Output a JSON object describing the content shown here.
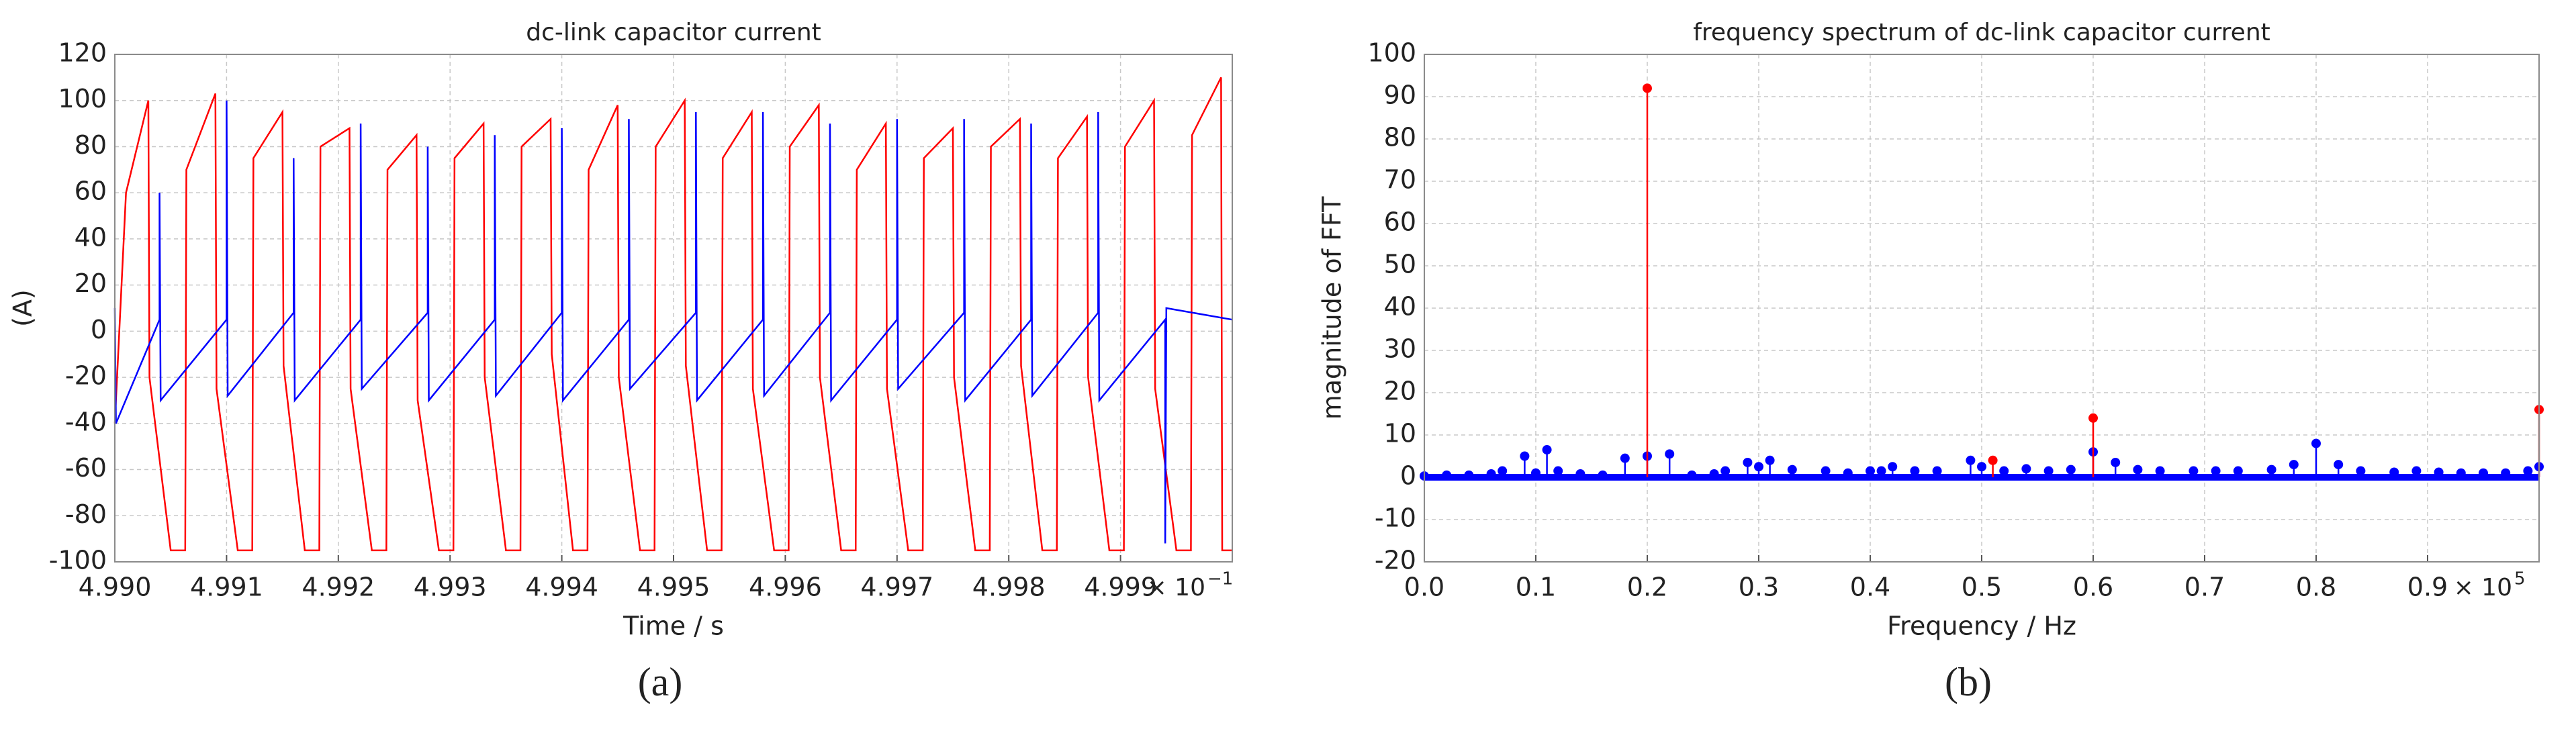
{
  "chart_data": [
    {
      "type": "line",
      "title": "dc-link capacitor current",
      "xlabel": "Time / s",
      "ylabel": "(A)",
      "x_multiplier": "× 10",
      "x_multiplier_exponent": "−1",
      "caption": "(a)",
      "xlim": [
        4.99,
        5.0
      ],
      "xticks": [
        {
          "value": 4.99,
          "label": "4.990"
        },
        {
          "value": 4.991,
          "label": "4.991"
        },
        {
          "value": 4.992,
          "label": "4.992"
        },
        {
          "value": 4.993,
          "label": "4.993"
        },
        {
          "value": 4.994,
          "label": "4.994"
        },
        {
          "value": 4.995,
          "label": "4.995"
        },
        {
          "value": 4.996,
          "label": "4.996"
        },
        {
          "value": 4.997,
          "label": "4.997"
        },
        {
          "value": 4.998,
          "label": "4.998"
        },
        {
          "value": 4.999,
          "label": "4.999"
        }
      ],
      "ylim": [
        -100,
        120
      ],
      "yticks": [
        -100,
        -80,
        -60,
        -40,
        -20,
        0,
        20,
        40,
        60,
        80,
        100,
        120
      ],
      "grid": true,
      "series": [
        {
          "color": "#ff0000",
          "x": [
            4.99,
            4.9901,
            4.9903,
            4.99031,
            4.9905,
            4.99063,
            4.99064,
            4.9909,
            4.99091,
            4.9911,
            4.99123,
            4.99124,
            4.9915,
            4.99151,
            4.9917,
            4.99183,
            4.99184,
            4.9921,
            4.99211,
            4.9923,
            4.99243,
            4.99244,
            4.9927,
            4.99271,
            4.9929,
            4.99303,
            4.99304,
            4.9933,
            4.99331,
            4.9935,
            4.99363,
            4.99364,
            4.9939,
            4.99391,
            4.9941,
            4.99423,
            4.99424,
            4.9945,
            4.99451,
            4.9947,
            4.99483,
            4.99484,
            4.9951,
            4.99511,
            4.9953,
            4.99543,
            4.99544,
            4.9957,
            4.99571,
            4.9959,
            4.99603,
            4.99604,
            4.9963,
            4.99631,
            4.9965,
            4.99663,
            4.99664,
            4.9969,
            4.99691,
            4.9971,
            4.99723,
            4.99724,
            4.9975,
            4.99751,
            4.9977,
            4.99783,
            4.99784,
            4.9981,
            4.99811,
            4.9983,
            4.99843,
            4.99844,
            4.9987,
            4.99871,
            4.9989,
            4.99903,
            4.99904,
            4.9993,
            4.99931,
            4.9995,
            4.99963,
            4.99964,
            4.9999,
            4.99991,
            5.0
          ],
          "values": [
            -40,
            60,
            100,
            -20,
            -95,
            -95,
            70,
            103,
            -25,
            -95,
            -95,
            75,
            95,
            -15,
            -95,
            -95,
            80,
            88,
            -25,
            -95,
            -95,
            70,
            85,
            -30,
            -95,
            -95,
            75,
            90,
            -20,
            -95,
            -95,
            80,
            92,
            -10,
            -95,
            -95,
            70,
            98,
            -20,
            -95,
            -95,
            80,
            100,
            -15,
            -95,
            -95,
            75,
            95,
            -25,
            -95,
            -95,
            80,
            98,
            -20,
            -95,
            -95,
            70,
            90,
            -25,
            -95,
            -95,
            75,
            88,
            -20,
            -95,
            -95,
            80,
            92,
            -15,
            -95,
            -95,
            75,
            93,
            -20,
            -95,
            -95,
            80,
            100,
            -25,
            -95,
            -95,
            85,
            110,
            -95,
            -95
          ]
        },
        {
          "color": "#0000ff",
          "x": [
            4.99,
            4.99001,
            4.9904,
            4.9904,
            4.99041,
            4.991,
            4.991,
            4.99101,
            4.9916,
            4.9916,
            4.99161,
            4.9922,
            4.9922,
            4.99221,
            4.9928,
            4.9928,
            4.99281,
            4.9934,
            4.9934,
            4.99341,
            4.994,
            4.994,
            4.99401,
            4.9946,
            4.9946,
            4.99461,
            4.9952,
            4.9952,
            4.99521,
            4.9958,
            4.9958,
            4.99581,
            4.9964,
            4.9964,
            4.99641,
            4.997,
            4.997,
            4.99701,
            4.9976,
            4.9976,
            4.99761,
            4.9982,
            4.9982,
            4.99821,
            4.9988,
            4.9988,
            4.99881,
            4.9994,
            4.9994,
            4.99941,
            5.0
          ],
          "values": [
            10,
            -40,
            5,
            60,
            -30,
            5,
            100,
            -28,
            8,
            75,
            -30,
            5,
            90,
            -25,
            8,
            80,
            -30,
            5,
            85,
            -28,
            8,
            88,
            -30,
            5,
            92,
            -25,
            8,
            95,
            -30,
            5,
            95,
            -28,
            8,
            90,
            -30,
            5,
            92,
            -25,
            8,
            92,
            -30,
            5,
            90,
            -28,
            8,
            95,
            -30,
            5,
            -92,
            10,
            5
          ]
        }
      ]
    },
    {
      "type": "stem",
      "title": "frequency spectrum of dc-link capacitor current",
      "xlabel": "Frequency / Hz",
      "ylabel": "magnitude of FFT",
      "x_multiplier": "× 10",
      "x_multiplier_exponent": "5",
      "caption": "(b)",
      "xlim": [
        0,
        1
      ],
      "xticks": [
        {
          "value": 0,
          "label": "0.0"
        },
        0.1,
        0.2,
        0.3,
        0.4,
        0.5,
        0.6,
        0.7,
        0.8,
        0.9
      ],
      "ylim": [
        -20,
        100
      ],
      "yticks": [
        -20,
        -10,
        0,
        10,
        20,
        30,
        40,
        50,
        60,
        70,
        80,
        90,
        100
      ],
      "grid": true,
      "series": [
        {
          "color": "#0000ff",
          "x": [
            0,
            0.02,
            0.04,
            0.06,
            0.07,
            0.09,
            0.1,
            0.11,
            0.12,
            0.14,
            0.16,
            0.18,
            0.2,
            0.22,
            0.24,
            0.26,
            0.27,
            0.29,
            0.3,
            0.31,
            0.33,
            0.36,
            0.38,
            0.4,
            0.41,
            0.42,
            0.44,
            0.46,
            0.49,
            0.5,
            0.52,
            0.54,
            0.56,
            0.58,
            0.6,
            0.62,
            0.64,
            0.66,
            0.69,
            0.71,
            0.73,
            0.76,
            0.78,
            0.8,
            0.82,
            0.84,
            0.87,
            0.89,
            0.91,
            0.93,
            0.95,
            0.97,
            0.99,
            1.0
          ],
          "values": [
            0.3,
            0.5,
            0.5,
            0.8,
            1.5,
            5,
            1,
            6.5,
            1.5,
            0.8,
            0.5,
            4.5,
            5,
            5.5,
            0.5,
            0.8,
            1.5,
            3.5,
            2.5,
            4,
            1.8,
            1.5,
            1,
            1.5,
            1.5,
            2.5,
            1.5,
            1.5,
            4,
            2.5,
            1.5,
            2,
            1.5,
            1.8,
            6,
            3.5,
            1.8,
            1.5,
            1.5,
            1.5,
            1.5,
            1.8,
            3,
            8,
            3,
            1.5,
            1.2,
            1.5,
            1.2,
            1,
            1,
            1,
            1.5,
            2.5
          ]
        },
        {
          "color": "#ff0000",
          "x": [
            0.2,
            0.51,
            0.6,
            1.0
          ],
          "values": [
            92,
            4,
            14,
            16
          ]
        }
      ]
    }
  ]
}
